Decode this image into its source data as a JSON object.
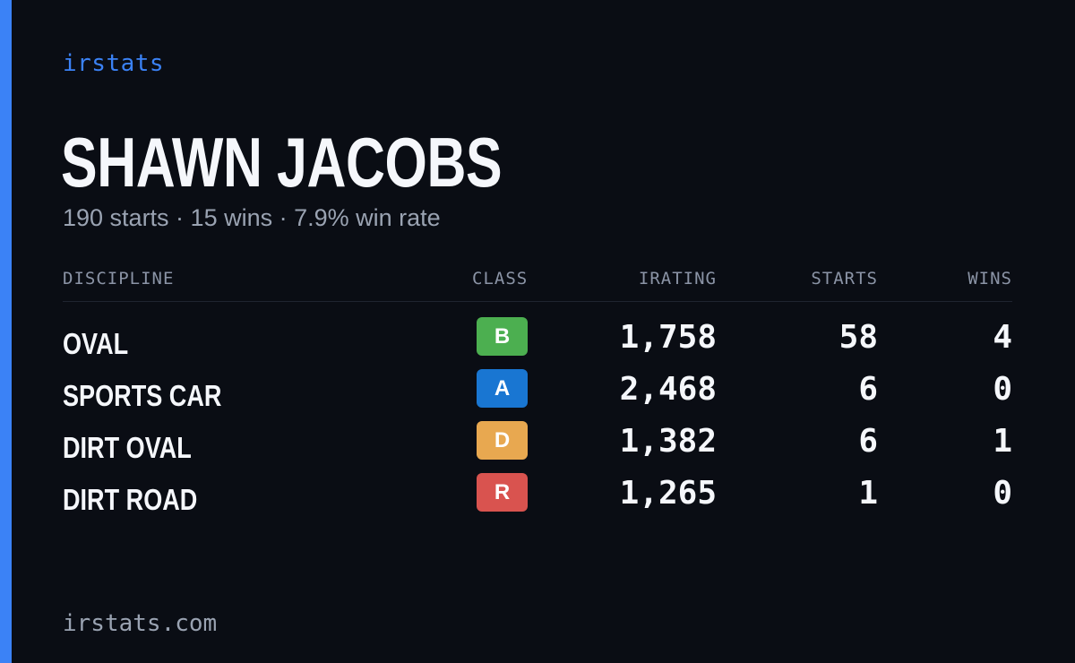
{
  "brand": "irstats",
  "driver_name": "SHAWN JACOBS",
  "summary": "190 starts · 15 wins · 7.9% win rate",
  "table": {
    "headers": {
      "discipline": "DISCIPLINE",
      "class": "CLASS",
      "irating": "IRATING",
      "starts": "STARTS",
      "wins": "WINS"
    },
    "rows": [
      {
        "discipline": "OVAL",
        "class": "B",
        "class_color": "#4caf50",
        "irating": "1,758",
        "starts": "58",
        "wins": "4"
      },
      {
        "discipline": "SPORTS CAR",
        "class": "A",
        "class_color": "#1976d2",
        "irating": "2,468",
        "starts": "6",
        "wins": "0"
      },
      {
        "discipline": "DIRT OVAL",
        "class": "D",
        "class_color": "#e8a850",
        "irating": "1,382",
        "starts": "6",
        "wins": "1"
      },
      {
        "discipline": "DIRT ROAD",
        "class": "R",
        "class_color": "#d9534f",
        "irating": "1,265",
        "starts": "1",
        "wins": "0"
      }
    ]
  },
  "footer": "irstats.com",
  "colors": {
    "accent": "#3b82f6",
    "background": "#0a0d14"
  }
}
